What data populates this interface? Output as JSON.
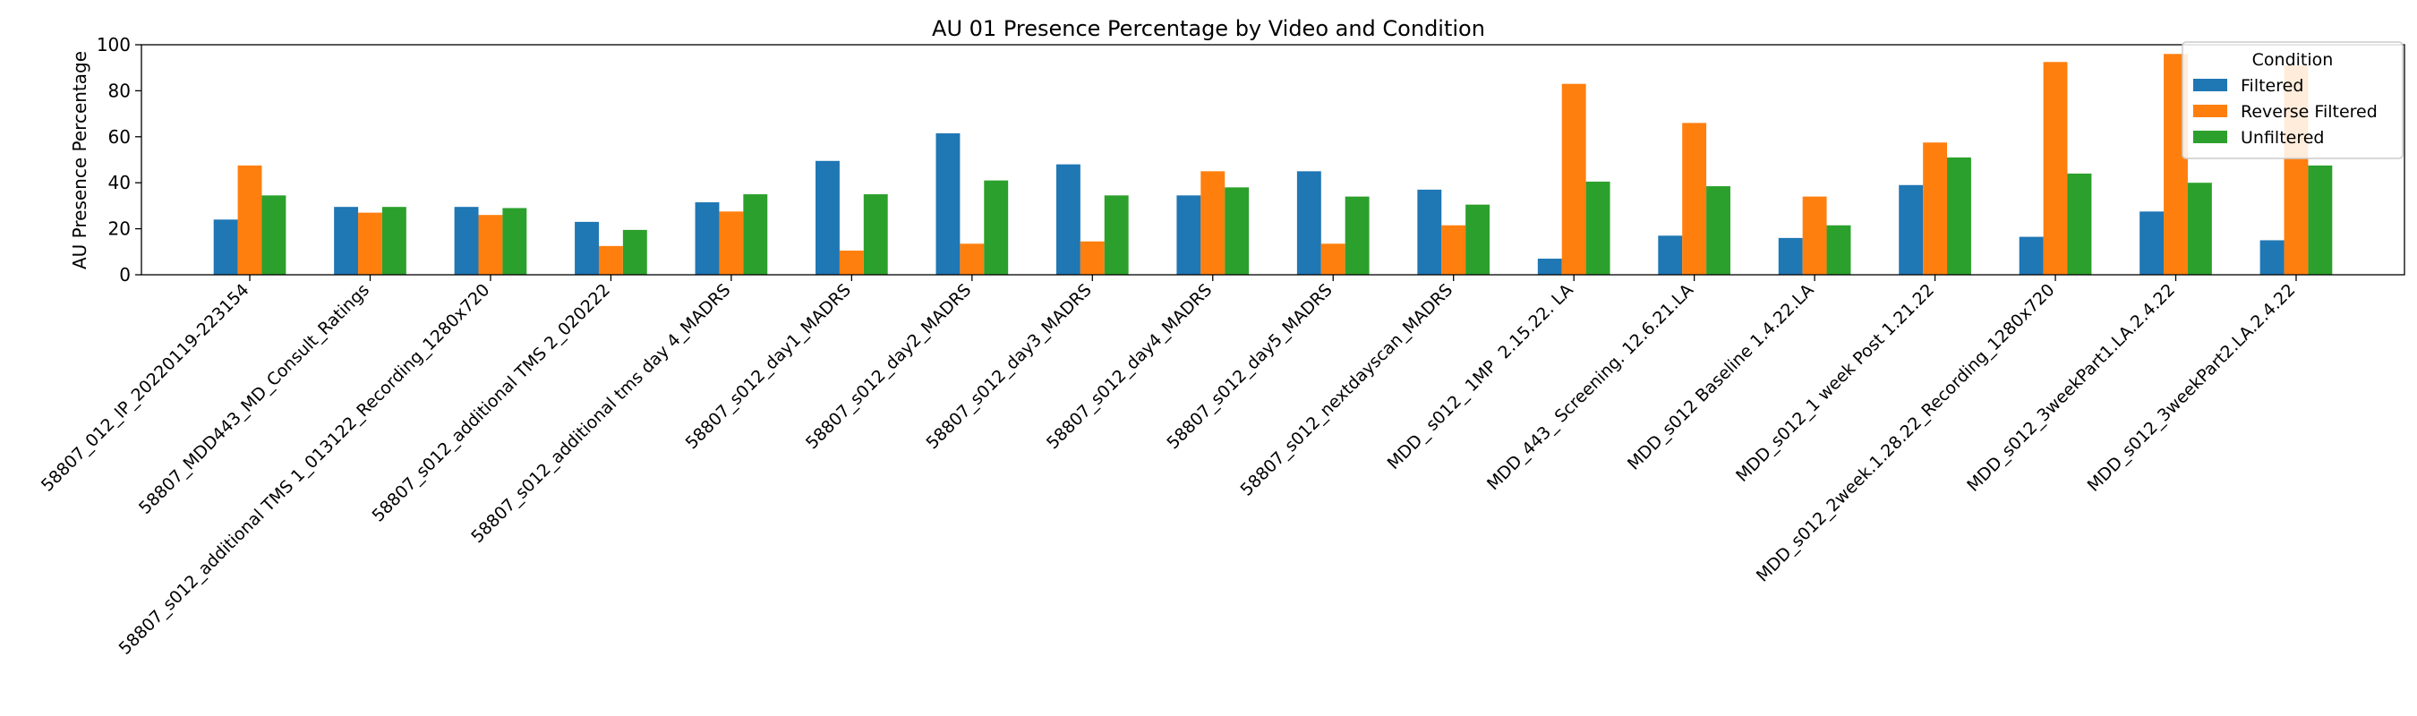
{
  "chart_data": {
    "type": "bar",
    "title": "AU 01 Presence Percentage by Video and Condition",
    "xlabel": "",
    "ylabel": "AU Presence Percentage",
    "ylim": [
      0,
      100
    ],
    "yticks": [
      0,
      20,
      40,
      60,
      80,
      100
    ],
    "grid": false,
    "legend": {
      "title": "Condition",
      "placement": "top-right"
    },
    "categories": [
      "58807_012_IP_20220119-223154",
      "58807_MDD443_MD_Consult_Ratings",
      "58807_s012_additional TMS 1_013122_Recording_1280x720",
      "58807_s012_additional TMS 2_020222",
      "58807_s012_additional tms day 4_MADRS",
      "58807_s012_day1_MADRS",
      "58807_s012_day2_MADRS",
      "58807_s012_day3_MADRS",
      "58807_s012_day4_MADRS",
      "58807_s012_day5_MADRS",
      "58807_s012_nextdayscan_MADRS",
      "MDD_ s012_ 1MP  2.15.22. LA",
      "MDD_443_ Screening. 12.6.21.LA",
      "MDD_s012 Baseline 1.4.22.LA",
      "MDD_s012_1 week Post 1.21.22",
      "MDD_s012_2week.1.28.22_Recording_1280x720",
      "MDD_s012_3weekPart1.LA.2.4.22",
      "MDD_s012_3weekPart2.LA.2.4.22"
    ],
    "series": [
      {
        "name": "Filtered",
        "color": "#1f77b4",
        "values": [
          24,
          29.5,
          29.5,
          23,
          31.5,
          49.5,
          61.5,
          48,
          34.5,
          45,
          37,
          7,
          17,
          16,
          39,
          16.5,
          27.5,
          15
        ]
      },
      {
        "name": "Reverse Filtered",
        "color": "#ff7f0e",
        "values": [
          47.5,
          27,
          26,
          12.5,
          27.5,
          10.5,
          13.5,
          14.5,
          45,
          13.5,
          21.5,
          83,
          66,
          34,
          57.5,
          92.5,
          96,
          91
        ]
      },
      {
        "name": "Unfiltered",
        "color": "#2ca02c",
        "values": [
          34.5,
          29.5,
          29,
          19.5,
          35,
          35,
          41,
          34.5,
          38,
          34,
          30.5,
          40.5,
          38.5,
          21.5,
          51,
          44,
          40,
          47.5
        ]
      }
    ]
  }
}
